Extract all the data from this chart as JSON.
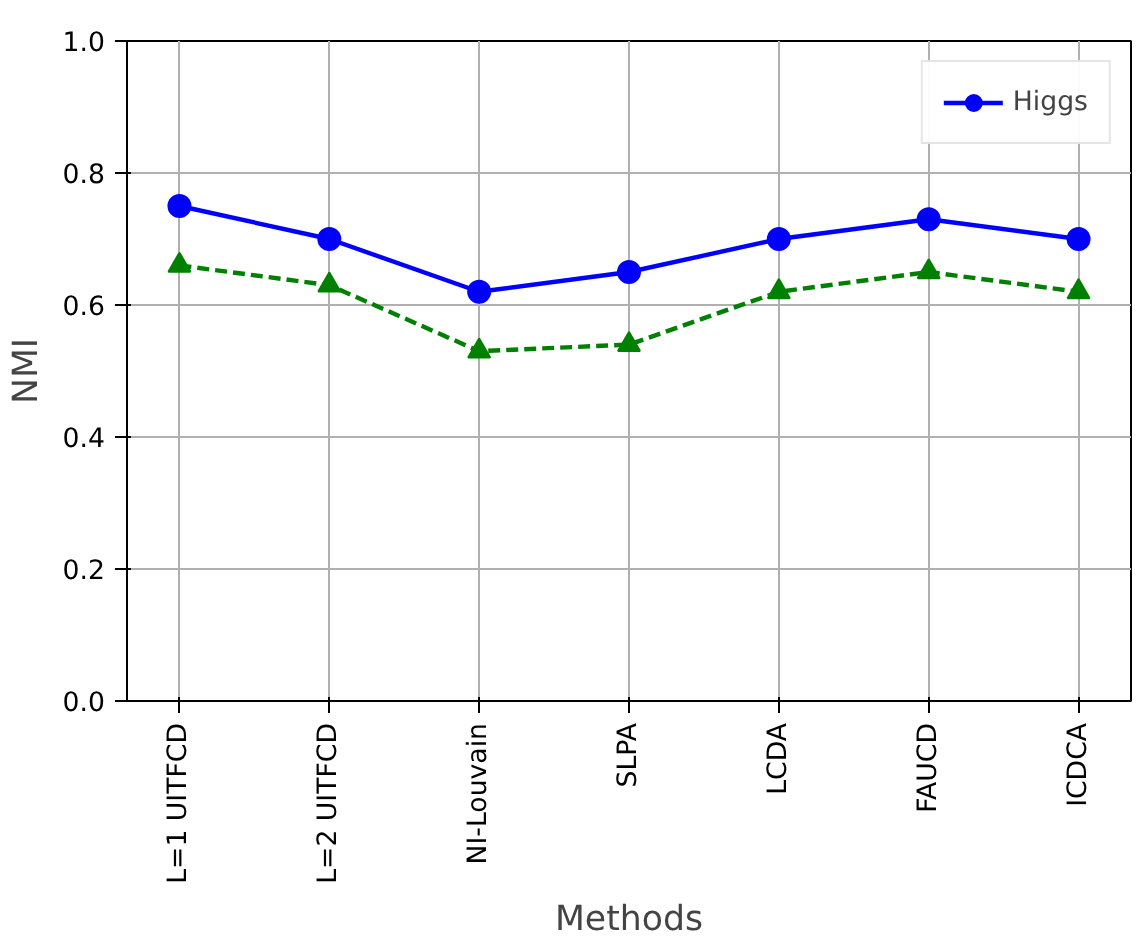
{
  "chart_data": {
    "type": "line",
    "xlabel": "Methods",
    "ylabel": "NMI",
    "categories": [
      "L=1 UITFCD",
      "L=2 UITFCD",
      "NI-Louvain",
      "SLPA",
      "LCDA",
      "FAUCD",
      "ICDCA"
    ],
    "series": [
      {
        "name": "Higgs",
        "color": "#0000ff",
        "marker": "circle",
        "line_style": "solid",
        "values": [
          0.75,
          0.7,
          0.62,
          0.65,
          0.7,
          0.73,
          0.7
        ]
      },
      {
        "color": "#008000",
        "marker": "triangle",
        "line_style": "dashed",
        "values": [
          0.66,
          0.63,
          0.53,
          0.54,
          0.62,
          0.65,
          0.62
        ]
      }
    ],
    "ylim": [
      0.0,
      1.0
    ],
    "yticks": [
      {
        "value": 0.0,
        "label": "0.0"
      },
      {
        "value": 0.2,
        "label": "0.2"
      },
      {
        "value": 0.4,
        "label": "0.4"
      },
      {
        "value": 0.6,
        "label": "0.6"
      },
      {
        "value": 0.8,
        "label": "0.8"
      },
      {
        "value": 1.0,
        "label": "1.0"
      }
    ],
    "grid": true,
    "legend": "top right"
  }
}
